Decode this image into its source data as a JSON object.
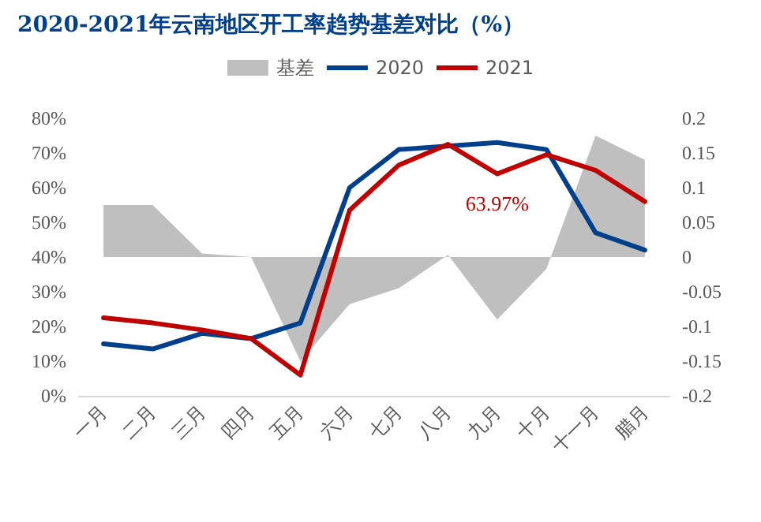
{
  "chart_data": {
    "type": "line",
    "title": "2020-2021年云南地区开工率趋势基差对比（%）",
    "categories": [
      "一月",
      "二月",
      "三月",
      "四月",
      "五月",
      "六月",
      "七月",
      "八月",
      "九月",
      "十月",
      "十一月",
      "腊月"
    ],
    "series": [
      {
        "name": "基差",
        "type": "area",
        "axis": "y2",
        "color": "#bfbfbf",
        "values": [
          0.075,
          0.075,
          0.005,
          0,
          -0.15,
          -0.068,
          -0.045,
          0.003,
          -0.09,
          -0.017,
          0.175,
          0.14
        ]
      },
      {
        "name": "2020",
        "color": "#003f8c",
        "values": [
          15,
          13.5,
          18,
          16.5,
          21,
          60,
          71,
          72,
          73,
          71,
          47,
          42
        ]
      },
      {
        "name": "2021",
        "color": "#c00000",
        "values": [
          22.5,
          21,
          19,
          16.5,
          6,
          53.5,
          66.5,
          72.5,
          63.97,
          69.5,
          65,
          56
        ],
        "value_labels": [
          null,
          null,
          null,
          null,
          null,
          null,
          null,
          null,
          "63.97%",
          null,
          null,
          null
        ]
      }
    ],
    "ylim": [
      0,
      80
    ],
    "yticks": [
      {
        "value": 0,
        "label": "0%"
      },
      {
        "value": 10,
        "label": "10%"
      },
      {
        "value": 20,
        "label": "20%"
      },
      {
        "value": 30,
        "label": "30%"
      },
      {
        "value": 40,
        "label": "40%"
      },
      {
        "value": 50,
        "label": "50%"
      },
      {
        "value": 60,
        "label": "60%"
      },
      {
        "value": 70,
        "label": "70%"
      },
      {
        "value": 80,
        "label": "80%"
      }
    ],
    "y2lim": [
      -0.2,
      0.2
    ],
    "y2ticks": [
      -0.2,
      -0.15,
      -0.1,
      -0.05,
      0,
      0.05,
      0.1,
      0.15,
      0.2
    ],
    "grid": false,
    "legend": "top",
    "marker": "none",
    "line_style": "solid"
  }
}
